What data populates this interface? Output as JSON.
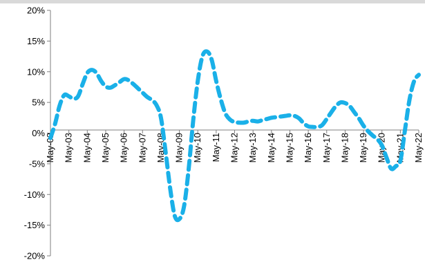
{
  "chart_data": {
    "type": "line",
    "title": "",
    "xlabel": "",
    "ylabel": "",
    "ylim": [
      -20,
      20
    ],
    "y_ticks": [
      "20%",
      "15%",
      "10%",
      "5%",
      "0%",
      "-5%",
      "-10%",
      "-15%",
      "-20%"
    ],
    "x_ticks": [
      "May-02",
      "May-03",
      "May-04",
      "May-05",
      "May-06",
      "May-07",
      "May-08",
      "May-09",
      "May-10",
      "May-11",
      "May-12",
      "May-13",
      "May-14",
      "May-15",
      "May-16",
      "May-17",
      "May-18",
      "May-19",
      "May-20",
      "May-21",
      "May-22"
    ],
    "grid": false,
    "series": [
      {
        "color": "#1ab0e8",
        "x": [
          2002.0,
          2002.25,
          2002.5,
          2002.75,
          2003.0,
          2003.25,
          2003.5,
          2003.75,
          2004.0,
          2004.25,
          2004.5,
          2004.75,
          2005.0,
          2005.25,
          2005.5,
          2005.75,
          2006.0,
          2006.25,
          2006.5,
          2006.75,
          2007.0,
          2007.25,
          2007.5,
          2007.75,
          2008.0,
          2008.25,
          2008.5,
          2008.75,
          2009.0,
          2009.25,
          2009.5,
          2009.75,
          2010.0,
          2010.25,
          2010.5,
          2010.75,
          2011.0,
          2011.25,
          2011.5,
          2011.75,
          2012.0,
          2012.25,
          2012.5,
          2012.75,
          2013.0,
          2013.25,
          2013.5,
          2013.75,
          2014.0,
          2014.25,
          2014.5,
          2014.75,
          2015.0,
          2015.25,
          2015.5,
          2015.75,
          2016.0,
          2016.25,
          2016.5,
          2016.75,
          2017.0,
          2017.25,
          2017.5,
          2017.75,
          2018.0,
          2018.25,
          2018.5,
          2018.75,
          2019.0,
          2019.25,
          2019.5,
          2019.75,
          2020.0,
          2020.25,
          2020.5,
          2020.75,
          2021.0,
          2021.25,
          2021.5,
          2021.75,
          2022.0
        ],
        "y": [
          -0.8,
          1.5,
          4.5,
          6.2,
          6.0,
          5.6,
          6.0,
          8.0,
          9.8,
          10.3,
          9.8,
          8.5,
          7.6,
          7.4,
          7.8,
          8.3,
          8.8,
          8.6,
          8.0,
          7.3,
          6.6,
          5.9,
          5.4,
          4.6,
          2.5,
          -3.0,
          -9.0,
          -13.5,
          -14.0,
          -12.0,
          -6.0,
          2.0,
          8.5,
          12.5,
          13.3,
          12.0,
          8.5,
          5.5,
          3.2,
          2.2,
          1.8,
          1.7,
          1.7,
          1.9,
          2.0,
          1.9,
          2.1,
          2.3,
          2.5,
          2.6,
          2.7,
          2.8,
          2.9,
          2.8,
          2.4,
          1.6,
          1.1,
          1.0,
          1.0,
          1.3,
          2.3,
          3.4,
          4.4,
          5.0,
          4.9,
          4.4,
          3.4,
          2.4,
          1.2,
          0.3,
          -0.4,
          -1.0,
          -2.0,
          -4.0,
          -5.8,
          -5.4,
          -4.5,
          0.5,
          5.5,
          8.5,
          9.5
        ]
      }
    ]
  }
}
